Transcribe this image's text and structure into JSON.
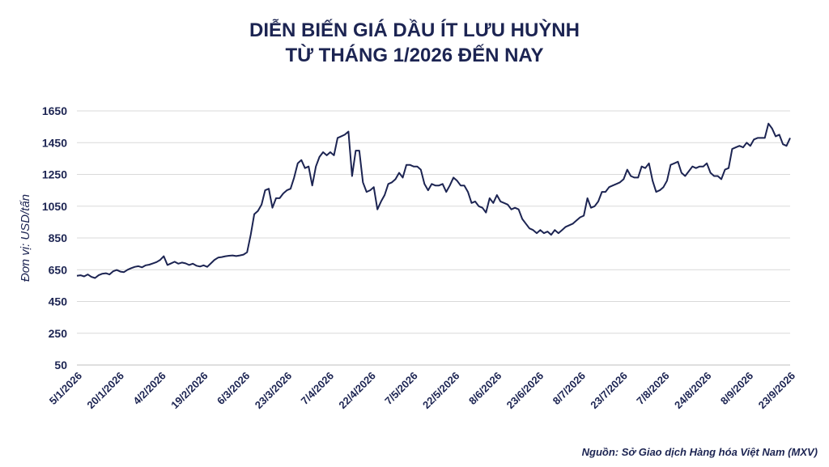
{
  "chart_data": {
    "type": "line",
    "title_line1": "DIỄN BIẾN GIÁ DẦU ÍT LƯU HUỲNH",
    "title_line2": "TỪ THÁNG 1/2026 ĐẾN NAY",
    "ylabel": "Đơn vị: USD/tấn",
    "xlabel": "",
    "ylim": [
      50,
      1650
    ],
    "yticks": [
      50,
      250,
      450,
      650,
      850,
      1050,
      1250,
      1450,
      1650
    ],
    "grid": true,
    "legend": "none",
    "line_color": "#1c2452",
    "x_tick_labels": [
      "5/1/2026",
      "20/1/2026",
      "4/2/2026",
      "19/2/2026",
      "6/3/2026",
      "23/3/2026",
      "7/4/2026",
      "22/4/2026",
      "7/5/2026",
      "22/5/2026",
      "8/6/2026",
      "23/6/2026",
      "8/7/2026",
      "23/7/2026",
      "7/8/2026",
      "24/8/2026",
      "8/9/2026",
      "23/9/2026"
    ],
    "series": [
      {
        "values": [
          612,
          615,
          608,
          620,
          605,
          598,
          615,
          625,
          628,
          620,
          640,
          648,
          638,
          635,
          650,
          660,
          668,
          672,
          665,
          678,
          682,
          690,
          698,
          712,
          735,
          680,
          690,
          700,
          688,
          695,
          690,
          680,
          688,
          675,
          670,
          678,
          668,
          690,
          712,
          726,
          730,
          735,
          738,
          740,
          736,
          740,
          745,
          760,
          870,
          1000,
          1020,
          1060,
          1150,
          1160,
          1040,
          1100,
          1100,
          1130,
          1150,
          1160,
          1230,
          1320,
          1340,
          1290,
          1300,
          1180,
          1300,
          1360,
          1390,
          1370,
          1390,
          1370,
          1480,
          1490,
          1500,
          1520,
          1240,
          1400,
          1400,
          1200,
          1140,
          1150,
          1170,
          1030,
          1080,
          1120,
          1190,
          1200,
          1220,
          1260,
          1230,
          1310,
          1310,
          1300,
          1300,
          1280,
          1190,
          1150,
          1190,
          1180,
          1180,
          1190,
          1140,
          1180,
          1230,
          1210,
          1180,
          1180,
          1140,
          1070,
          1080,
          1050,
          1040,
          1010,
          1100,
          1070,
          1120,
          1080,
          1070,
          1060,
          1030,
          1040,
          1030,
          970,
          940,
          910,
          900,
          880,
          900,
          880,
          890,
          870,
          900,
          880,
          900,
          920,
          930,
          940,
          960,
          980,
          990,
          1100,
          1040,
          1050,
          1080,
          1140,
          1140,
          1170,
          1180,
          1190,
          1200,
          1220,
          1280,
          1240,
          1230,
          1230,
          1300,
          1290,
          1320,
          1210,
          1140,
          1150,
          1170,
          1210,
          1310,
          1320,
          1330,
          1260,
          1240,
          1270,
          1300,
          1290,
          1300,
          1300,
          1320,
          1260,
          1240,
          1240,
          1220,
          1280,
          1290,
          1410,
          1420,
          1430,
          1420,
          1450,
          1430,
          1470,
          1480,
          1480,
          1480,
          1570,
          1540,
          1490,
          1500,
          1440,
          1430,
          1480
        ]
      }
    ]
  },
  "source_text": "Nguồn: Sở Giao dịch Hàng hóa Việt Nam (MXV)"
}
